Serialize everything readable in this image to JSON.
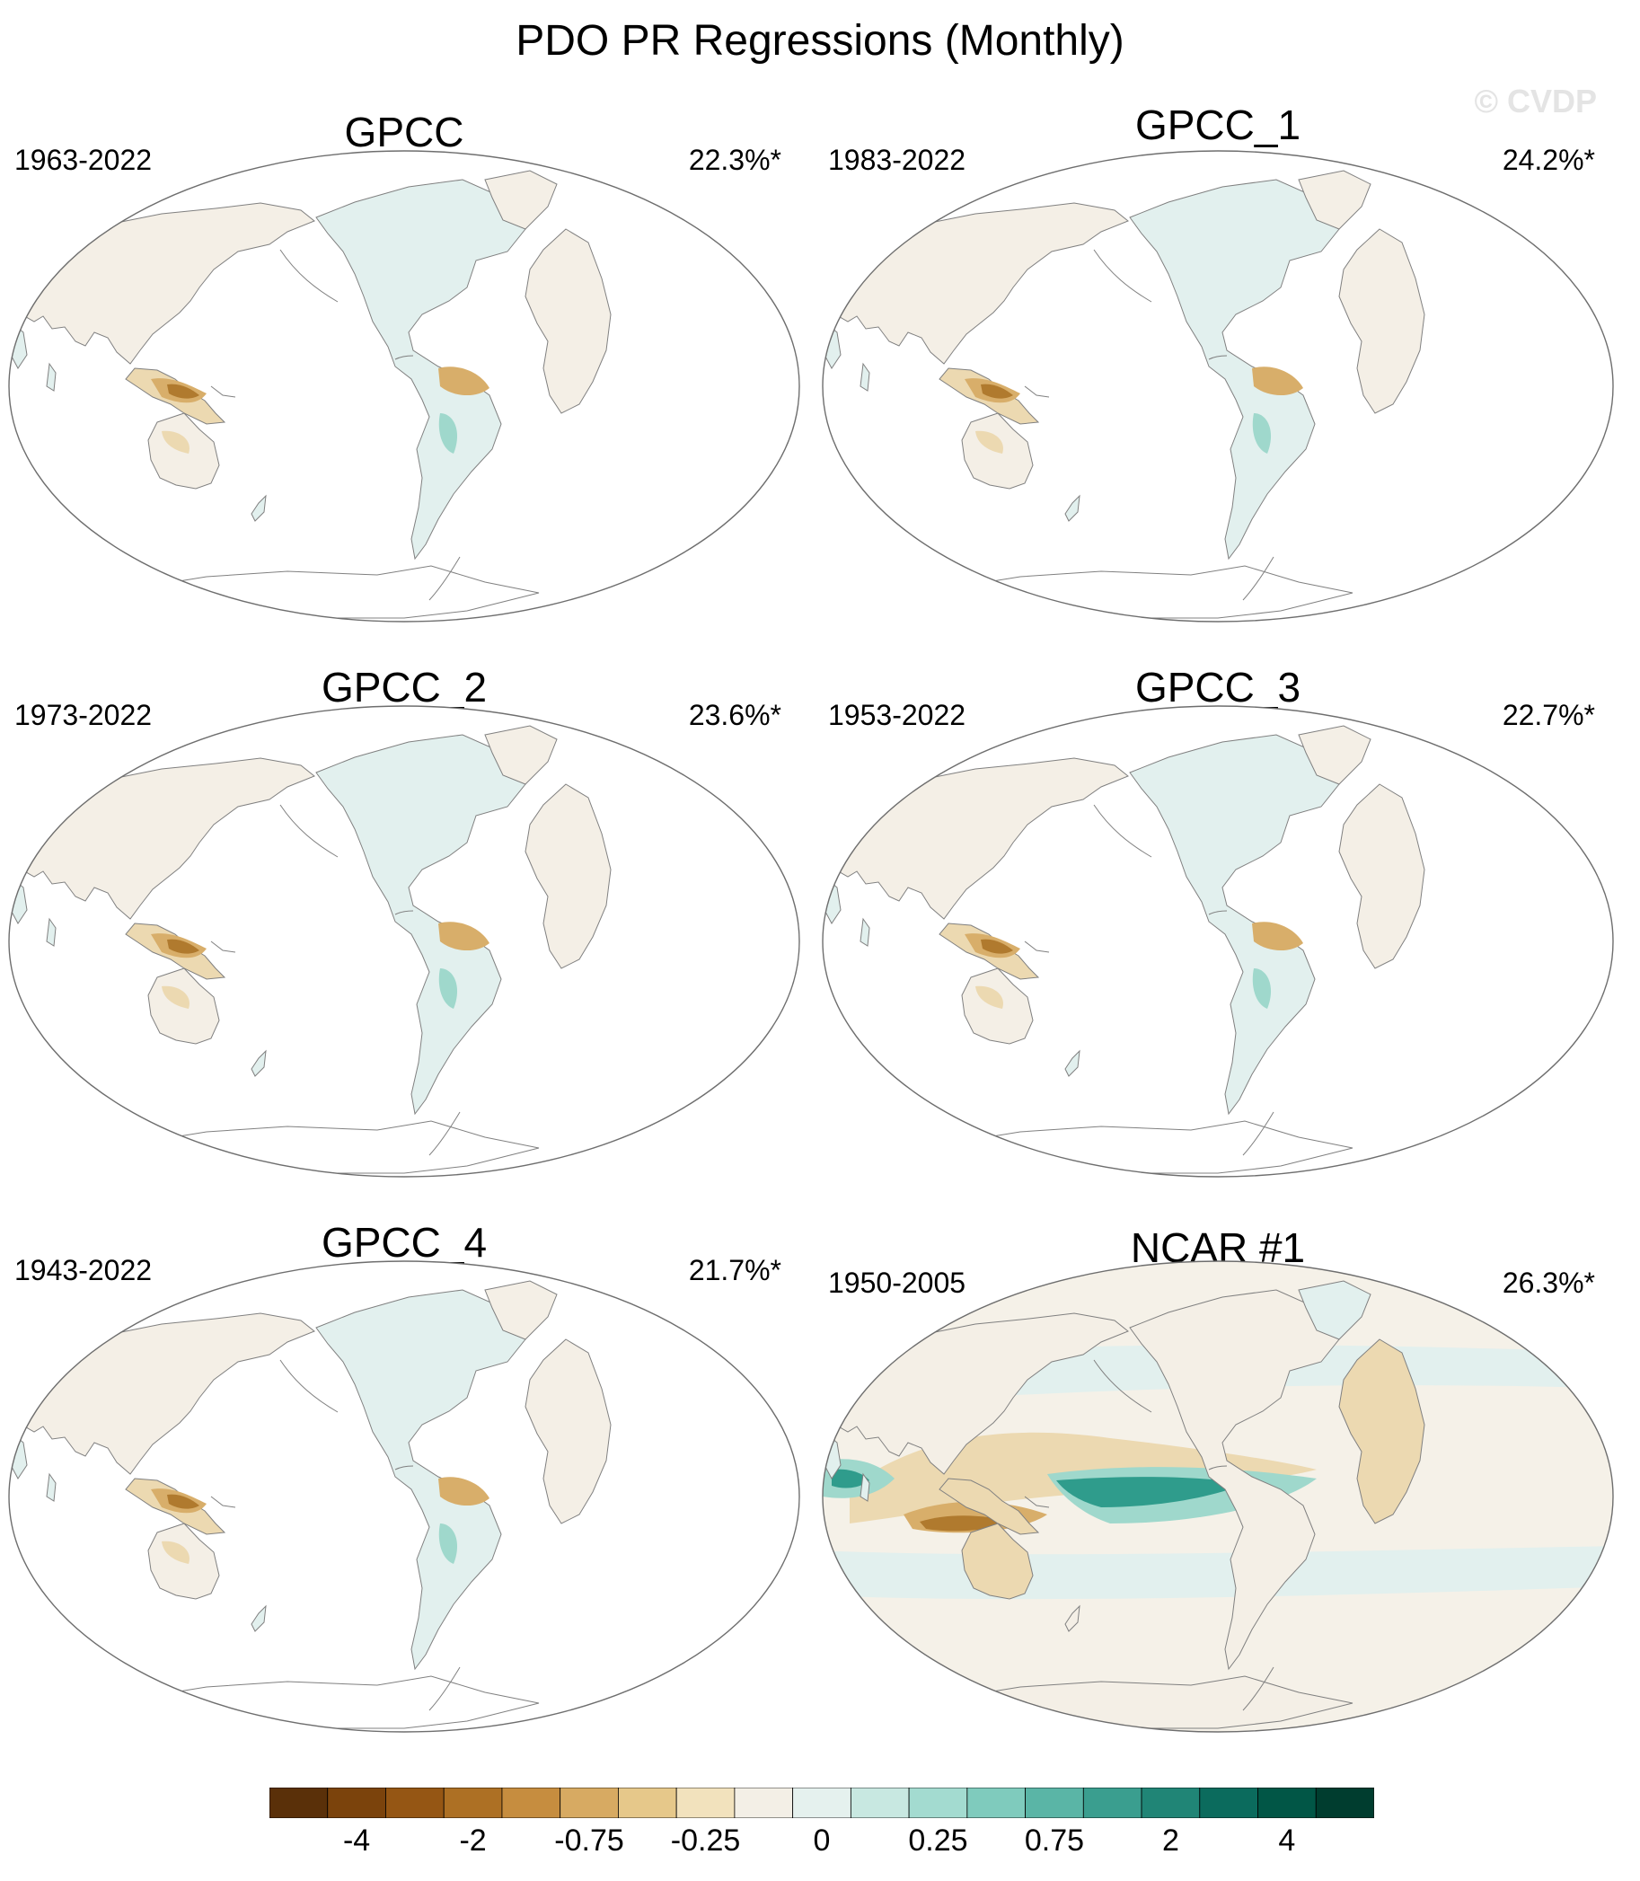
{
  "title": "PDO PR Regressions (Monthly)",
  "watermark": "© CVDP",
  "panels": [
    {
      "title": "GPCC",
      "years": "1963-2022",
      "pct": "22.3%*"
    },
    {
      "title": "GPCC_1",
      "years": "1983-2022",
      "pct": "24.2%*"
    },
    {
      "title": "GPCC_2",
      "years": "1973-2022",
      "pct": "23.6%*"
    },
    {
      "title": "GPCC_3",
      "years": "1953-2022",
      "pct": "22.7%*"
    },
    {
      "title": "GPCC_4",
      "years": "1943-2022",
      "pct": "21.7%*"
    },
    {
      "title": "NCAR #1",
      "years": "1950-2005",
      "pct": "26.3%*"
    }
  ],
  "colorbar": {
    "colors": [
      "#5a3009",
      "#7b430c",
      "#955614",
      "#ad7024",
      "#c68d3f",
      "#d7aa62",
      "#e6c88a",
      "#f2e2bd",
      "#f3efe6",
      "#e5f1ee",
      "#c8e8e1",
      "#a3dbd0",
      "#7fcbbd",
      "#5ab5a6",
      "#3a9e8f",
      "#208576",
      "#0b6b5d",
      "#015646",
      "#003d2f"
    ],
    "labels": [
      "-4",
      "-2",
      "-0.75",
      "-0.25",
      "0",
      "0.25",
      "0.75",
      "2",
      "4"
    ]
  },
  "colors": {
    "ocean": "#ffffff",
    "land_neutral": "#f4efe6",
    "land_wet": "#e2f0ee",
    "dry_light": "#ecd9b1",
    "dry_mid": "#d8ae6a",
    "dry_strong": "#b07a2e",
    "wet_mid": "#9fd8cc",
    "wet_strong": "#2f9c8c",
    "coast": "#808080"
  }
}
